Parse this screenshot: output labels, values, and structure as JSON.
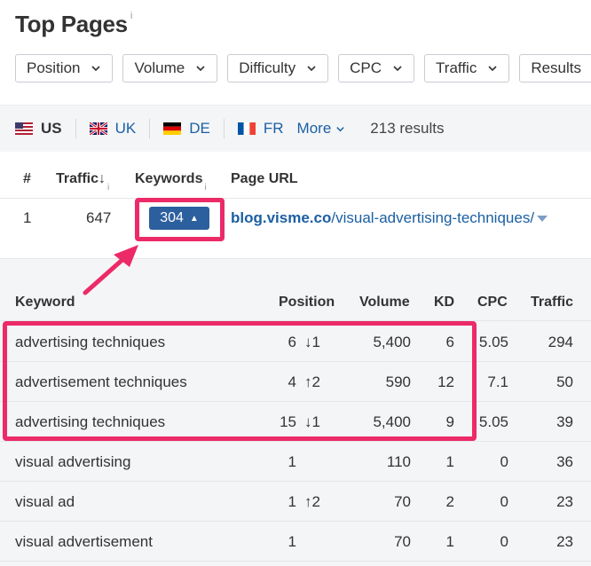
{
  "header": {
    "title": "Top Pages",
    "info": "i"
  },
  "filters": [
    {
      "label": "Position"
    },
    {
      "label": "Volume"
    },
    {
      "label": "Difficulty"
    },
    {
      "label": "CPC"
    },
    {
      "label": "Traffic"
    },
    {
      "label": "Results"
    }
  ],
  "countries": [
    {
      "code": "US",
      "active": true
    },
    {
      "code": "UK",
      "active": false
    },
    {
      "code": "DE",
      "active": false
    },
    {
      "code": "FR",
      "active": false
    }
  ],
  "more_label": "More",
  "results_text": "213 results",
  "table": {
    "columns": {
      "num": "#",
      "traffic": "Traffic",
      "traffic_sort": "↓",
      "traffic_info": "i",
      "keywords": "Keywords",
      "keywords_info": "i",
      "url": "Page URL"
    },
    "row": {
      "num": "1",
      "traffic": "647",
      "keywords": "304",
      "url_domain": "blog.visme.co",
      "url_path": "/visual-advertising-techniques/"
    }
  },
  "subtable": {
    "columns": {
      "keyword": "Keyword",
      "position": "Position",
      "volume": "Volume",
      "kd": "KD",
      "cpc": "CPC",
      "traffic": "Traffic"
    },
    "rows": [
      {
        "keyword": "advertising techniques",
        "position": "6",
        "change": "↓1",
        "change_dir": "down",
        "volume": "5,400",
        "kd": "6",
        "cpc": "5.05",
        "traffic": "294"
      },
      {
        "keyword": "advertisement techniques",
        "position": "4",
        "change": "↑2",
        "change_dir": "up",
        "volume": "590",
        "kd": "12",
        "cpc": "7.1",
        "traffic": "50"
      },
      {
        "keyword": "advertising techniques",
        "position": "15",
        "change": "↓1",
        "change_dir": "down",
        "volume": "5,400",
        "kd": "9",
        "cpc": "5.05",
        "traffic": "39"
      },
      {
        "keyword": "visual advertising",
        "position": "1",
        "change": "",
        "change_dir": "",
        "volume": "110",
        "kd": "1",
        "cpc": "0",
        "traffic": "36"
      },
      {
        "keyword": "visual ad",
        "position": "1",
        "change": "↑2",
        "change_dir": "up",
        "volume": "70",
        "kd": "2",
        "cpc": "0",
        "traffic": "23"
      },
      {
        "keyword": "visual advertisement",
        "position": "1",
        "change": "",
        "change_dir": "",
        "volume": "70",
        "kd": "1",
        "cpc": "0",
        "traffic": "23"
      }
    ]
  },
  "colors": {
    "highlight": "#ec2a68",
    "badge": "#2c5f9e",
    "link": "#1b5fa3"
  }
}
